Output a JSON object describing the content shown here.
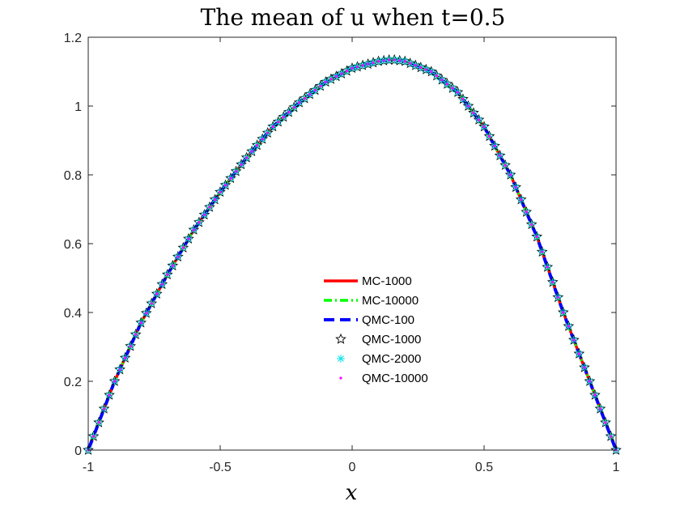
{
  "chart_data": {
    "type": "line",
    "title": "The mean of u when t=0.5",
    "xlabel": "x",
    "ylabel": "",
    "xlim": [
      -1,
      1
    ],
    "ylim": [
      0,
      1.2
    ],
    "xticks": [
      -1,
      -0.5,
      0,
      0.5,
      1
    ],
    "xtick_labels": [
      "-1",
      "-0.5",
      "0",
      "0.5",
      "1"
    ],
    "yticks": [
      0,
      0.2,
      0.4,
      0.6,
      0.8,
      1,
      1.2
    ],
    "ytick_labels": [
      "0",
      "0.2",
      "0.4",
      "0.6",
      "0.8",
      "1",
      "1.2"
    ],
    "grid": false,
    "legend_position": "center",
    "x": [
      -1,
      -0.9,
      -0.8,
      -0.7,
      -0.6,
      -0.5,
      -0.4,
      -0.3,
      -0.2,
      -0.1,
      0,
      0.1,
      0.15,
      0.2,
      0.3,
      0.4,
      0.5,
      0.6,
      0.7,
      0.8,
      0.9,
      1
    ],
    "series": [
      {
        "name": "MC-1000",
        "style": "solid-line",
        "color": "#ff0000",
        "values": [
          0,
          0.2,
          0.37,
          0.51,
          0.64,
          0.75,
          0.85,
          0.94,
          1.01,
          1.07,
          1.11,
          1.13,
          1.135,
          1.13,
          1.1,
          1.04,
          0.94,
          0.8,
          0.62,
          0.4,
          0.2,
          0
        ]
      },
      {
        "name": "MC-10000",
        "style": "dash-dot-line",
        "color": "#00ff00",
        "values": [
          0,
          0.2,
          0.37,
          0.51,
          0.64,
          0.75,
          0.85,
          0.94,
          1.01,
          1.07,
          1.11,
          1.13,
          1.135,
          1.13,
          1.1,
          1.04,
          0.94,
          0.8,
          0.62,
          0.4,
          0.2,
          0
        ]
      },
      {
        "name": "QMC-100",
        "style": "dashed-line",
        "color": "#0000ff",
        "values": [
          0,
          0.2,
          0.37,
          0.51,
          0.64,
          0.75,
          0.85,
          0.94,
          1.01,
          1.07,
          1.11,
          1.13,
          1.135,
          1.13,
          1.1,
          1.04,
          0.94,
          0.8,
          0.62,
          0.4,
          0.2,
          0
        ]
      },
      {
        "name": "QMC-1000",
        "style": "star-marker",
        "color": "#000000",
        "values": [
          0,
          0.2,
          0.37,
          0.51,
          0.64,
          0.75,
          0.85,
          0.94,
          1.01,
          1.07,
          1.11,
          1.13,
          1.135,
          1.13,
          1.1,
          1.04,
          0.94,
          0.8,
          0.62,
          0.4,
          0.2,
          0
        ]
      },
      {
        "name": "QMC-2000",
        "style": "asterisk-marker",
        "color": "#00e5ee",
        "values": [
          0,
          0.2,
          0.37,
          0.51,
          0.64,
          0.75,
          0.85,
          0.94,
          1.01,
          1.07,
          1.11,
          1.13,
          1.135,
          1.13,
          1.1,
          1.04,
          0.94,
          0.8,
          0.62,
          0.4,
          0.2,
          0
        ]
      },
      {
        "name": "QMC-10000",
        "style": "dot-marker",
        "color": "#ff00ff",
        "values": [
          0,
          0.2,
          0.37,
          0.51,
          0.64,
          0.75,
          0.85,
          0.94,
          1.01,
          1.07,
          1.11,
          1.13,
          1.135,
          1.13,
          1.1,
          1.04,
          0.94,
          0.8,
          0.62,
          0.4,
          0.2,
          0
        ]
      }
    ]
  }
}
